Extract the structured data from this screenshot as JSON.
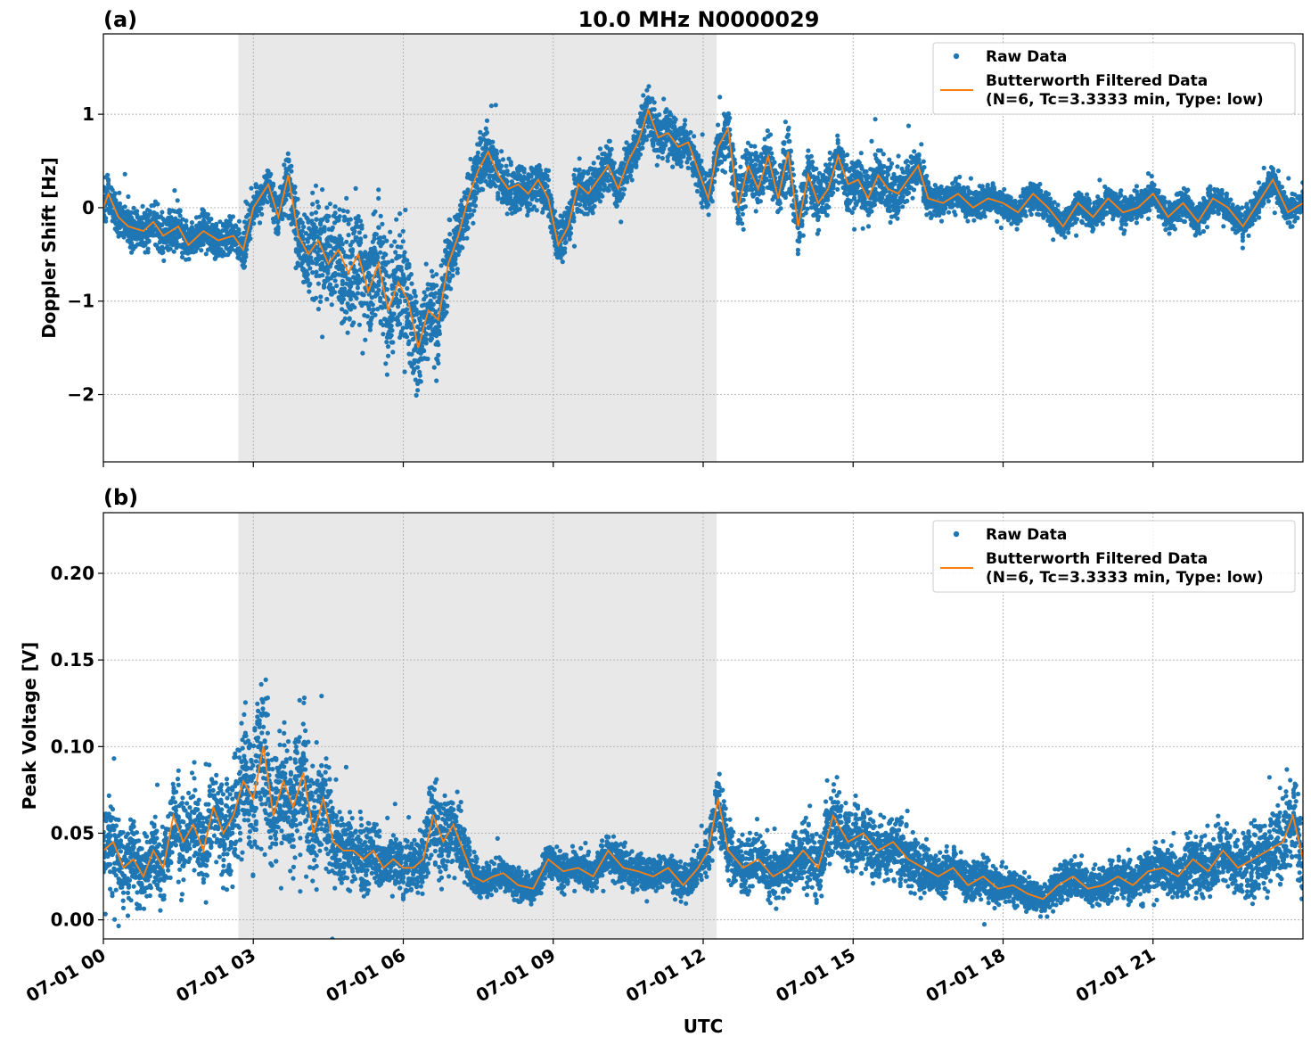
{
  "figure": {
    "title": "10.0 MHz N0000029",
    "xlabel": "UTC",
    "colors": {
      "raw": "#1f77b4",
      "filtered": "#ff7f0e",
      "shade": "#e8e8e8",
      "grid": "#b0b0b0"
    }
  },
  "chart_data": [
    {
      "type": "scatter",
      "panel_label": "(a)",
      "title": "10.0 MHz N0000029",
      "xlabel": "",
      "ylabel": "Doppler Shift [Hz]",
      "xlim_hours": [
        0,
        24
      ],
      "ylim": [
        -2.72,
        1.86
      ],
      "yticks": [
        -2,
        -1,
        0,
        1
      ],
      "ytick_labels": [
        "−2",
        "−1",
        "0",
        "1"
      ],
      "shaded_interval_hours": [
        2.7,
        12.27
      ],
      "grid": true,
      "legend_placement": "upper-right",
      "legend": {
        "raw": "Raw Data",
        "filtered_line1": "Butterworth Filtered Data",
        "filtered_line2": "(N=6, Tc=3.3333 min, Type: low)"
      },
      "series": [
        {
          "name": "Butterworth Filtered Data",
          "x_hours": [
            0,
            0.1,
            0.3,
            0.5,
            0.8,
            1.0,
            1.2,
            1.5,
            1.7,
            2.0,
            2.3,
            2.6,
            2.8,
            3.0,
            3.3,
            3.5,
            3.7,
            3.9,
            4.1,
            4.3,
            4.5,
            4.7,
            4.9,
            5.1,
            5.3,
            5.5,
            5.7,
            5.9,
            6.1,
            6.3,
            6.5,
            6.7,
            6.9,
            7.1,
            7.3,
            7.5,
            7.7,
            7.9,
            8.1,
            8.3,
            8.5,
            8.7,
            8.9,
            9.1,
            9.3,
            9.5,
            9.7,
            9.9,
            10.1,
            10.3,
            10.5,
            10.7,
            10.9,
            11.1,
            11.3,
            11.5,
            11.7,
            11.9,
            12.1,
            12.3,
            12.5,
            12.7,
            12.9,
            13.1,
            13.3,
            13.5,
            13.7,
            13.9,
            14.1,
            14.3,
            14.5,
            14.7,
            14.9,
            15.1,
            15.3,
            15.5,
            15.7,
            15.9,
            16.1,
            16.3,
            16.5,
            16.8,
            17.1,
            17.4,
            17.7,
            18.0,
            18.3,
            18.6,
            18.9,
            19.2,
            19.5,
            19.8,
            20.1,
            20.4,
            20.7,
            21.0,
            21.3,
            21.6,
            21.9,
            22.2,
            22.5,
            22.8,
            23.1,
            23.4,
            23.7,
            24.0
          ],
          "y": [
            0.0,
            0.15,
            -0.1,
            -0.2,
            -0.25,
            -0.15,
            -0.3,
            -0.2,
            -0.4,
            -0.25,
            -0.35,
            -0.3,
            -0.45,
            0.0,
            0.25,
            -0.1,
            0.35,
            -0.3,
            -0.5,
            -0.35,
            -0.6,
            -0.45,
            -0.7,
            -0.5,
            -0.9,
            -0.6,
            -1.1,
            -0.8,
            -1.0,
            -1.5,
            -1.1,
            -1.2,
            -0.6,
            -0.3,
            0.1,
            0.4,
            0.6,
            0.35,
            0.2,
            0.25,
            0.15,
            0.3,
            0.1,
            -0.4,
            -0.2,
            0.25,
            0.15,
            0.3,
            0.45,
            0.2,
            0.5,
            0.7,
            1.05,
            0.75,
            0.8,
            0.65,
            0.7,
            0.4,
            0.1,
            0.65,
            0.85,
            0.0,
            0.45,
            0.2,
            0.55,
            0.1,
            0.6,
            -0.2,
            0.35,
            0.05,
            0.2,
            0.55,
            0.25,
            0.3,
            0.1,
            0.35,
            0.2,
            0.15,
            0.3,
            0.45,
            0.1,
            0.05,
            0.15,
            0.0,
            0.1,
            0.05,
            -0.05,
            0.15,
            0.0,
            -0.2,
            0.05,
            -0.1,
            0.1,
            -0.05,
            0.0,
            0.15,
            -0.1,
            0.05,
            -0.15,
            0.1,
            0.0,
            -0.2,
            0.05,
            0.3,
            -0.05,
            0.05
          ]
        },
        {
          "name": "Raw Data",
          "spread_about_filtered": [
            0.3,
            0.3,
            0.3,
            0.3,
            0.3,
            0.3,
            0.3,
            0.3,
            0.3,
            0.3,
            0.3,
            0.3,
            0.3,
            0.25,
            0.25,
            0.35,
            0.45,
            0.6,
            0.7,
            0.8,
            0.85,
            0.85,
            0.9,
            0.9,
            0.9,
            0.95,
            0.95,
            0.95,
            0.9,
            0.85,
            0.7,
            0.6,
            0.55,
            0.5,
            0.5,
            0.5,
            0.45,
            0.4,
            0.4,
            0.4,
            0.4,
            0.35,
            0.35,
            0.35,
            0.35,
            0.35,
            0.35,
            0.35,
            0.35,
            0.35,
            0.35,
            0.4,
            0.4,
            0.4,
            0.4,
            0.35,
            0.35,
            0.35,
            0.35,
            0.35,
            0.4,
            0.45,
            0.45,
            0.4,
            0.4,
            0.45,
            0.45,
            0.45,
            0.45,
            0.4,
            0.4,
            0.45,
            0.45,
            0.4,
            0.4,
            0.4,
            0.4,
            0.4,
            0.35,
            0.3,
            0.25,
            0.22,
            0.22,
            0.22,
            0.22,
            0.22,
            0.22,
            0.22,
            0.22,
            0.22,
            0.22,
            0.22,
            0.22,
            0.22,
            0.22,
            0.22,
            0.22,
            0.22,
            0.22,
            0.22,
            0.22,
            0.22,
            0.22,
            0.22,
            0.22,
            0.22
          ]
        }
      ]
    },
    {
      "type": "scatter",
      "panel_label": "(b)",
      "title": "",
      "xlabel": "UTC",
      "ylabel": "Peak Voltage [V]",
      "xlim_hours": [
        0,
        24
      ],
      "ylim": [
        -0.011,
        0.235
      ],
      "yticks": [
        0.0,
        0.05,
        0.1,
        0.15,
        0.2
      ],
      "ytick_labels": [
        "0.00",
        "0.05",
        "0.10",
        "0.15",
        "0.20"
      ],
      "xticks_hours": [
        0,
        3,
        6,
        9,
        12,
        15,
        18,
        21
      ],
      "xtick_labels": [
        "07-01 00",
        "07-01 03",
        "07-01 06",
        "07-01 09",
        "07-01 12",
        "07-01 15",
        "07-01 18",
        "07-01 21"
      ],
      "shaded_interval_hours": [
        2.7,
        12.27
      ],
      "grid": true,
      "legend_placement": "upper-right",
      "legend": {
        "raw": "Raw Data",
        "filtered_line1": "Butterworth Filtered Data",
        "filtered_line2": "(N=6, Tc=3.3333 min, Type: low)"
      },
      "series": [
        {
          "name": "Butterworth Filtered Data",
          "x_hours": [
            0,
            0.2,
            0.4,
            0.6,
            0.8,
            1.0,
            1.2,
            1.4,
            1.6,
            1.8,
            2.0,
            2.2,
            2.4,
            2.6,
            2.8,
            3.0,
            3.2,
            3.4,
            3.6,
            3.8,
            4.0,
            4.2,
            4.4,
            4.6,
            4.8,
            5.0,
            5.2,
            5.4,
            5.6,
            5.8,
            6.0,
            6.2,
            6.4,
            6.6,
            6.8,
            7.0,
            7.2,
            7.4,
            7.6,
            7.8,
            8.0,
            8.3,
            8.6,
            8.9,
            9.2,
            9.5,
            9.8,
            10.1,
            10.4,
            10.7,
            11.0,
            11.3,
            11.6,
            11.9,
            12.1,
            12.3,
            12.5,
            12.8,
            13.1,
            13.4,
            13.7,
            14.0,
            14.3,
            14.6,
            14.9,
            15.2,
            15.5,
            15.8,
            16.1,
            16.4,
            16.7,
            17.0,
            17.3,
            17.6,
            17.9,
            18.2,
            18.5,
            18.8,
            19.1,
            19.4,
            19.7,
            20.0,
            20.3,
            20.6,
            20.9,
            21.2,
            21.5,
            21.8,
            22.1,
            22.4,
            22.7,
            23.0,
            23.3,
            23.6,
            23.8,
            24.0
          ],
          "y": [
            0.04,
            0.045,
            0.03,
            0.035,
            0.025,
            0.04,
            0.03,
            0.06,
            0.045,
            0.055,
            0.04,
            0.065,
            0.05,
            0.06,
            0.08,
            0.07,
            0.1,
            0.06,
            0.08,
            0.065,
            0.085,
            0.05,
            0.07,
            0.045,
            0.04,
            0.04,
            0.035,
            0.04,
            0.03,
            0.035,
            0.03,
            0.03,
            0.035,
            0.06,
            0.045,
            0.055,
            0.04,
            0.025,
            0.022,
            0.025,
            0.027,
            0.02,
            0.018,
            0.035,
            0.028,
            0.03,
            0.025,
            0.04,
            0.03,
            0.028,
            0.025,
            0.03,
            0.02,
            0.03,
            0.04,
            0.07,
            0.04,
            0.03,
            0.035,
            0.025,
            0.03,
            0.04,
            0.03,
            0.06,
            0.045,
            0.05,
            0.04,
            0.045,
            0.035,
            0.03,
            0.025,
            0.03,
            0.02,
            0.025,
            0.018,
            0.02,
            0.015,
            0.012,
            0.02,
            0.025,
            0.018,
            0.02,
            0.025,
            0.02,
            0.028,
            0.03,
            0.025,
            0.035,
            0.028,
            0.04,
            0.03,
            0.035,
            0.04,
            0.045,
            0.06,
            0.035
          ]
        },
        {
          "name": "Raw Data",
          "spread_about_filtered": [
            0.035,
            0.035,
            0.03,
            0.03,
            0.028,
            0.03,
            0.03,
            0.035,
            0.035,
            0.035,
            0.035,
            0.04,
            0.04,
            0.045,
            0.05,
            0.055,
            0.06,
            0.055,
            0.055,
            0.055,
            0.06,
            0.05,
            0.05,
            0.04,
            0.03,
            0.028,
            0.025,
            0.025,
            0.022,
            0.022,
            0.022,
            0.022,
            0.025,
            0.035,
            0.035,
            0.035,
            0.028,
            0.015,
            0.014,
            0.014,
            0.014,
            0.013,
            0.012,
            0.014,
            0.014,
            0.014,
            0.014,
            0.016,
            0.016,
            0.015,
            0.015,
            0.015,
            0.014,
            0.015,
            0.02,
            0.03,
            0.025,
            0.02,
            0.02,
            0.018,
            0.02,
            0.025,
            0.025,
            0.035,
            0.03,
            0.028,
            0.025,
            0.028,
            0.025,
            0.02,
            0.018,
            0.018,
            0.015,
            0.016,
            0.014,
            0.014,
            0.012,
            0.012,
            0.014,
            0.016,
            0.014,
            0.015,
            0.016,
            0.015,
            0.018,
            0.02,
            0.02,
            0.025,
            0.025,
            0.028,
            0.028,
            0.03,
            0.032,
            0.032,
            0.035,
            0.03
          ]
        }
      ]
    }
  ]
}
